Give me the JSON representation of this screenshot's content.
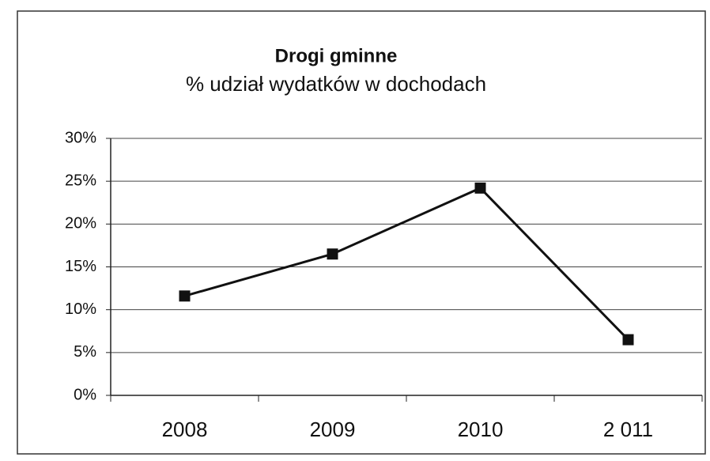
{
  "chart_data": {
    "type": "line",
    "title": "Drogi gminne",
    "subtitle": "% udział wydatków w dochodach",
    "categories": [
      "2008",
      "2009",
      "2010",
      "2 011"
    ],
    "values": [
      11.6,
      16.5,
      24.2,
      6.5
    ],
    "color": "#111111",
    "ylim": [
      0,
      30
    ],
    "yticks": [
      {
        "value": 0,
        "label": "0%"
      },
      {
        "value": 5,
        "label": "5%"
      },
      {
        "value": 10,
        "label": "10%"
      },
      {
        "value": 15,
        "label": "15%"
      },
      {
        "value": 20,
        "label": "20%"
      },
      {
        "value": 25,
        "label": "25%"
      },
      {
        "value": 30,
        "label": "30%"
      }
    ],
    "grid": true
  }
}
